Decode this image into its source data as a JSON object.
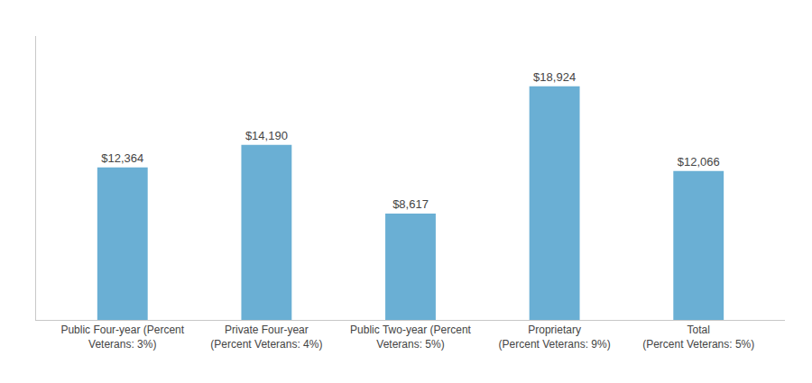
{
  "chart_data": {
    "type": "bar",
    "categories": [
      "Public Four-year (Percent\nVeterans: 3%)",
      "Private Four-year\n(Percent Veterans: 4%)",
      "Public Two-year (Percent\nVeterans: 5%)",
      "Proprietary\n(Percent Veterans: 9%)",
      "Total\n(Percent Veterans: 5%)"
    ],
    "values": [
      12364,
      14190,
      8617,
      18924,
      12066
    ],
    "value_labels": [
      "$12,364",
      "$14,190",
      "$8,617",
      "$18,924",
      "$12,066"
    ],
    "data_labels": true,
    "color": "#6aafd4",
    "ylim": [
      0,
      23000
    ],
    "grid": false,
    "tick_labels": "x"
  }
}
